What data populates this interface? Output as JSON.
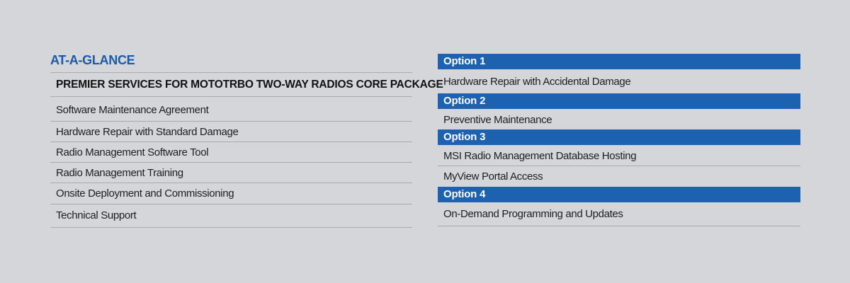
{
  "title": "AT-A-GLANCE",
  "core_package": {
    "header": "PREMIER SERVICES FOR MOTOTRBO TWO-WAY RADIOS CORE PACKAGE",
    "items": [
      "Software Maintenance Agreement",
      "Hardware Repair with Standard Damage",
      "Radio Management Software Tool",
      "Radio Management Training",
      "Onsite Deployment and Commissioning",
      "Technical Support"
    ]
  },
  "options": [
    {
      "label": "Option 1",
      "items": [
        "Hardware Repair with Accidental Damage"
      ]
    },
    {
      "label": "Option 2",
      "items": [
        "Preventive Maintenance"
      ]
    },
    {
      "label": "Option 3",
      "items": [
        "MSI Radio Management Database Hosting",
        "MyView Portal Access"
      ]
    },
    {
      "label": "Option 4",
      "items": [
        "On-Demand Programming and Updates"
      ]
    }
  ],
  "colors": {
    "accent": "#1c62b0",
    "background": "#d5d6da"
  }
}
